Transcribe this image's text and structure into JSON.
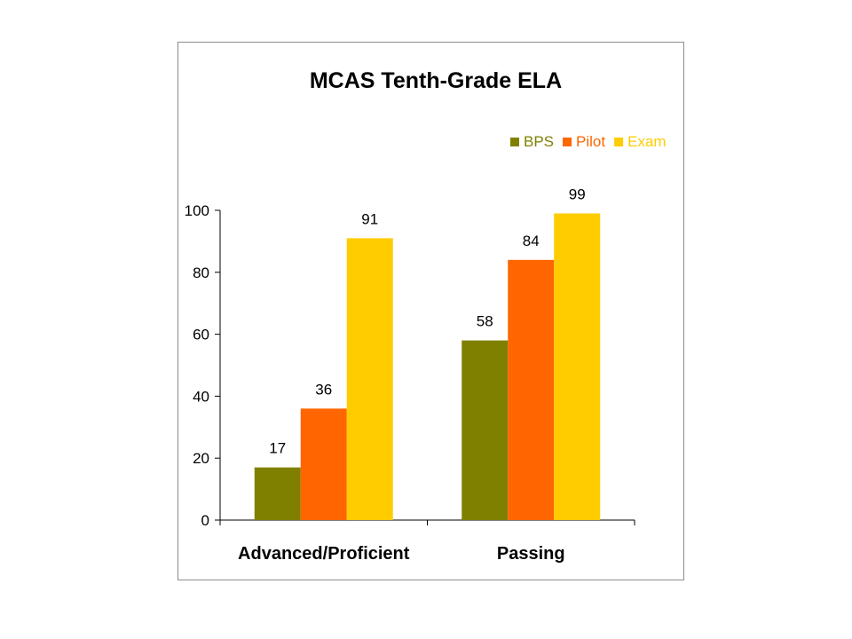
{
  "chart_data": {
    "type": "bar",
    "title": "MCAS Tenth-Grade ELA",
    "categories": [
      "Advanced/Proficient",
      "Passing"
    ],
    "series": [
      {
        "name": "BPS",
        "color": "#808000",
        "values": [
          17,
          58
        ]
      },
      {
        "name": "Pilot",
        "color": "#FF6600",
        "values": [
          36,
          84
        ]
      },
      {
        "name": "Exam",
        "color": "#FFCC00",
        "values": [
          91,
          99
        ]
      }
    ],
    "ylim": [
      0,
      100
    ],
    "yticks": [
      0,
      20,
      40,
      60,
      80,
      100
    ],
    "legend_position": "top-right",
    "grid": false
  }
}
